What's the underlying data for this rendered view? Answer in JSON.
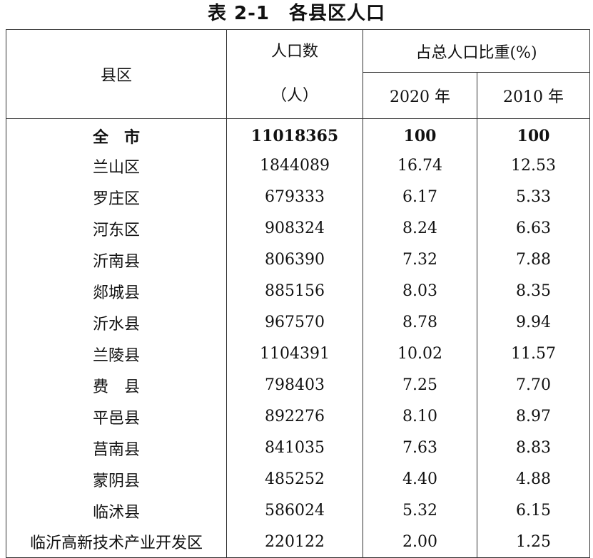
{
  "title": "表 2-1　各县区人口",
  "headers": {
    "district": "县区",
    "population_line1": "人口数",
    "population_line2": "（人）",
    "share": "占总人口比重(%)",
    "year_2020": "2020 年",
    "year_2010": "2010 年"
  },
  "rows": [
    {
      "name": "全　市",
      "population": "11018365",
      "share_2020": "100",
      "share_2010": "100"
    },
    {
      "name": "兰山区",
      "population": "1844089",
      "share_2020": "16.74",
      "share_2010": "12.53"
    },
    {
      "name": "罗庄区",
      "population": "679333",
      "share_2020": "6.17",
      "share_2010": "5.33"
    },
    {
      "name": "河东区",
      "population": "908324",
      "share_2020": "8.24",
      "share_2010": "6.63"
    },
    {
      "name": "沂南县",
      "population": "806390",
      "share_2020": "7.32",
      "share_2010": "7.88"
    },
    {
      "name": "郯城县",
      "population": "885156",
      "share_2020": "8.03",
      "share_2010": "8.35"
    },
    {
      "name": "沂水县",
      "population": "967570",
      "share_2020": "8.78",
      "share_2010": "9.94"
    },
    {
      "name": "兰陵县",
      "population": "1104391",
      "share_2020": "10.02",
      "share_2010": "11.57"
    },
    {
      "name": "费　县",
      "population": "798403",
      "share_2020": "7.25",
      "share_2010": "7.70"
    },
    {
      "name": "平邑县",
      "population": "892276",
      "share_2020": "8.10",
      "share_2010": "8.97"
    },
    {
      "name": "莒南县",
      "population": "841035",
      "share_2020": "7.63",
      "share_2010": "8.83"
    },
    {
      "name": "蒙阴县",
      "population": "485252",
      "share_2020": "4.40",
      "share_2010": "4.88"
    },
    {
      "name": "临沭县",
      "population": "586024",
      "share_2020": "5.32",
      "share_2010": "6.15"
    },
    {
      "name": "临沂高新技术产业开发区",
      "population": "220122",
      "share_2020": "2.00",
      "share_2010": "1.25"
    }
  ]
}
